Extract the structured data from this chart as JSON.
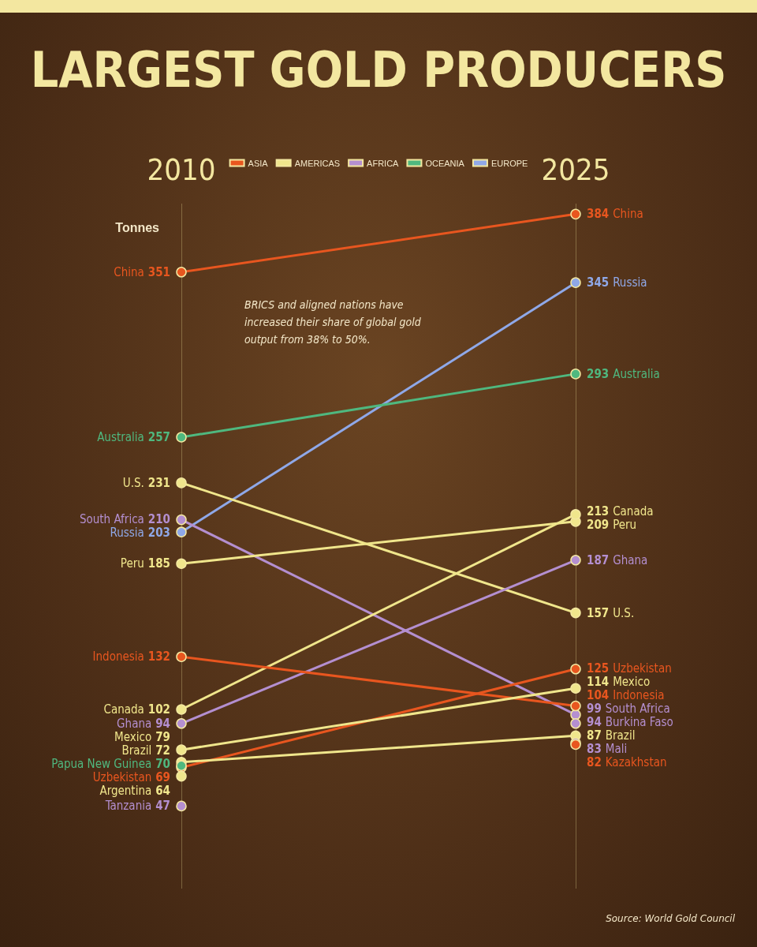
{
  "chart_data": {
    "type": "line",
    "title": "LARGEST GOLD PRODUCERS",
    "ylabel": "Tonnes",
    "categories": [
      "2010",
      "2025"
    ],
    "series": [
      {
        "name": "ASIA",
        "color": "#e8561f",
        "values": [
          null,
          null
        ]
      },
      {
        "name": "AMERICAS",
        "color": "#f0e68c",
        "values": [
          null,
          null
        ]
      },
      {
        "name": "AFRICA",
        "color": "#b48fd0",
        "values": [
          null,
          null
        ]
      },
      {
        "name": "OCEANIA",
        "color": "#4fb87f",
        "values": [
          null,
          null
        ]
      },
      {
        "name": "EUROPE",
        "color": "#8fa8e8",
        "values": [
          null,
          null
        ]
      },
      {
        "name": "China",
        "color": "#e8561f",
        "values": [
          351,
          384
        ]
      },
      {
        "name": "Russia",
        "color": "#8fa8e8",
        "values": [
          203,
          345
        ]
      },
      {
        "name": "Australia",
        "color": "#4fb87f",
        "values": [
          257,
          293
        ]
      },
      {
        "name": "U.S.",
        "color": "#f0e68c",
        "values": [
          231,
          157
        ]
      },
      {
        "name": "South Africa",
        "color": "#b48fd0",
        "values": [
          210,
          99
        ]
      },
      {
        "name": "Peru",
        "color": "#f0e68c",
        "values": [
          185,
          209
        ]
      },
      {
        "name": "Canada",
        "color": "#f0e68c",
        "values": [
          102,
          213
        ]
      },
      {
        "name": "Ghana",
        "color": "#b48fd0",
        "values": [
          94,
          187
        ]
      },
      {
        "name": "Indonesia",
        "color": "#e8561f",
        "values": [
          132,
          104
        ]
      },
      {
        "name": "Uzbekistan",
        "color": "#e8561f",
        "values": [
          69,
          125
        ]
      },
      {
        "name": "Mexico",
        "color": "#f0e68c",
        "values": [
          79,
          114
        ]
      },
      {
        "name": "Brazil",
        "color": "#f0e68c",
        "values": [
          72,
          87
        ]
      },
      {
        "name": "Burkina Faso",
        "color": "#b48fd0",
        "values": [
          null,
          94
        ]
      },
      {
        "name": "Mali",
        "color": "#b48fd0",
        "values": [
          null,
          83
        ]
      },
      {
        "name": "Kazakhstan",
        "color": "#e8561f",
        "values": [
          null,
          82
        ]
      },
      {
        "name": "Papua New Guinea",
        "color": "#4fb87f",
        "values": [
          70,
          null
        ]
      },
      {
        "name": "Argentina",
        "color": "#f0e68c",
        "values": [
          64,
          null
        ]
      },
      {
        "name": "Tanzania",
        "color": "#b48fd0",
        "values": [
          47,
          null
        ]
      }
    ],
    "ylim": [
      0,
      390
    ],
    "tick_labels": "x",
    "grid": "x",
    "legend": "top",
    "marker": "circle",
    "line_style": "solid",
    "data_labels": true,
    "annotations": [
      "BRICS and aligned nations have increased their share of global gold output from 38% to 50%.",
      "Source: World Gold Council"
    ]
  }
}
